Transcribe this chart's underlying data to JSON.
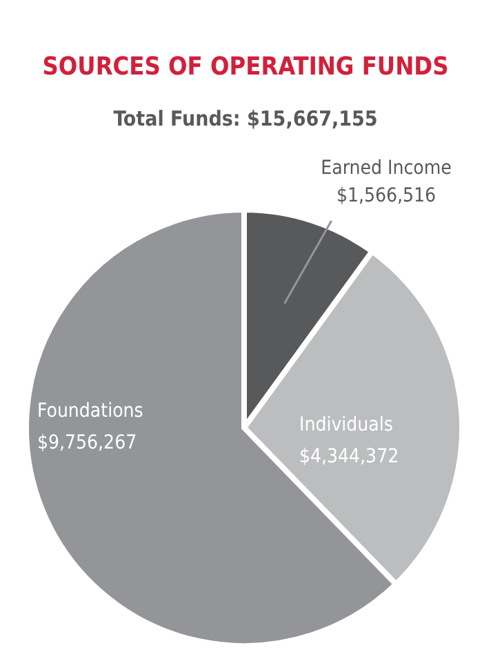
{
  "chart_data": {
    "type": "pie",
    "title": "SOURCES OF OPERATING FUNDS",
    "subtitle": "Total Funds: $15,667,155",
    "categories": [
      "Earned Income",
      "Individuals",
      "Foundations"
    ],
    "values": [
      1566516,
      4344372,
      9756267
    ],
    "colors": [
      "#58595b",
      "#bcbdbf",
      "#939598"
    ],
    "value_labels": [
      "$1,566,516",
      "$4,344,372",
      "$9,756,267"
    ]
  }
}
